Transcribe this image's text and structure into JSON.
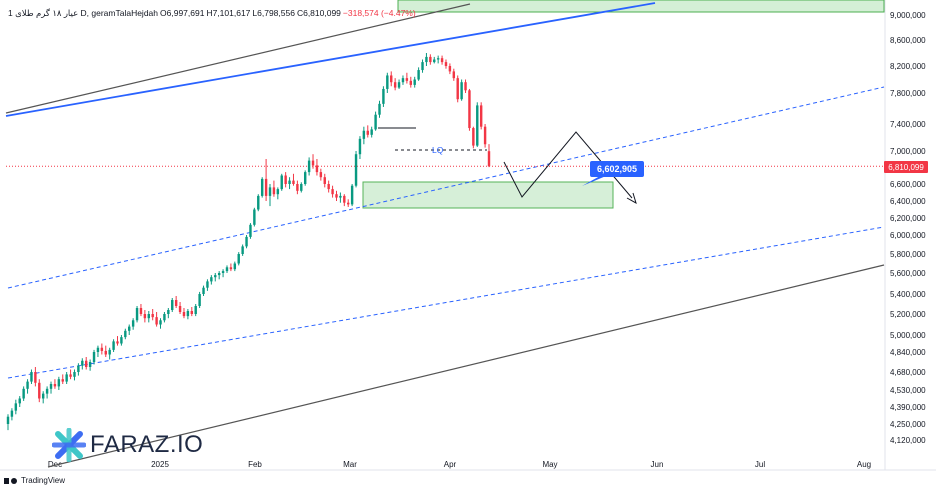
{
  "header": {
    "symbol": "1 عیار ۱۸ گرم طلای D, geramTalaHejdah",
    "open": "O6,997,691",
    "high": "H7,101,617",
    "low": "L6,798,556",
    "close": "C6,810,099",
    "change": "−318,574 (−4.47%)"
  },
  "footer": {
    "brand": "TradingView"
  },
  "watermark": {
    "text": "FARAZ.IO"
  },
  "annotations": {
    "callout_price": "6,602,905",
    "last_price": "6,810,099",
    "lq_label": "LQ"
  },
  "colors": {
    "up": "#089981",
    "down": "#f23645",
    "channel_blue": "#2962ff",
    "channel_gray": "#555555",
    "zone_fill": "#d4efd6",
    "zone_stroke": "#4caf50",
    "callout_bg": "#2962ff",
    "brand_teal": "#3ec6c8",
    "brand_blue": "#3d6df2"
  },
  "chart_data": {
    "type": "candlestick",
    "y_axis_ticks": [
      4120000,
      4250000,
      4390000,
      4530000,
      4680000,
      4840000,
      5000000,
      5200000,
      5400000,
      5600000,
      5800000,
      6000000,
      6200000,
      6400000,
      6600000,
      6800000,
      7000000,
      7400000,
      7800000,
      8200000,
      8600000,
      9000000
    ],
    "y_axis_labels": [
      "4,120,000",
      "4,250,000",
      "4,390,000",
      "4,530,000",
      "4,680,000",
      "4,840,000",
      "5,000,000",
      "5,200,000",
      "5,400,000",
      "5,600,000",
      "5,800,000",
      "6,000,000",
      "6,200,000",
      "6,400,000",
      "6,600,000",
      "6,800,000",
      "7,000,000",
      "7,400,000",
      "7,800,000",
      "8,200,000",
      "8,600,000",
      "9,000,000"
    ],
    "x_axis_labels": [
      "Dec",
      "2025",
      "Feb",
      "Mar",
      "Apr",
      "May",
      "Jun",
      "Jul",
      "Aug"
    ],
    "last_price": 6810099,
    "candles": [
      [
        4250000,
        4330000,
        4200000,
        4310000
      ],
      [
        4310000,
        4380000,
        4280000,
        4360000
      ],
      [
        4360000,
        4450000,
        4330000,
        4420000
      ],
      [
        4420000,
        4480000,
        4390000,
        4460000
      ],
      [
        4460000,
        4560000,
        4440000,
        4540000
      ],
      [
        4540000,
        4620000,
        4500000,
        4600000
      ],
      [
        4600000,
        4700000,
        4580000,
        4680000
      ],
      [
        4680000,
        4720000,
        4560000,
        4590000
      ],
      [
        4590000,
        4620000,
        4430000,
        4460000
      ],
      [
        4460000,
        4520000,
        4420000,
        4500000
      ],
      [
        4500000,
        4560000,
        4460000,
        4540000
      ],
      [
        4540000,
        4600000,
        4500000,
        4580000
      ],
      [
        4580000,
        4620000,
        4540000,
        4560000
      ],
      [
        4560000,
        4640000,
        4530000,
        4620000
      ],
      [
        4620000,
        4660000,
        4580000,
        4600000
      ],
      [
        4600000,
        4680000,
        4580000,
        4660000
      ],
      [
        4660000,
        4700000,
        4620000,
        4640000
      ],
      [
        4640000,
        4700000,
        4610000,
        4680000
      ],
      [
        4680000,
        4750000,
        4650000,
        4730000
      ],
      [
        4730000,
        4790000,
        4700000,
        4770000
      ],
      [
        4770000,
        4800000,
        4700000,
        4720000
      ],
      [
        4720000,
        4780000,
        4690000,
        4760000
      ],
      [
        4760000,
        4860000,
        4740000,
        4840000
      ],
      [
        4840000,
        4900000,
        4800000,
        4880000
      ],
      [
        4880000,
        4920000,
        4820000,
        4850000
      ],
      [
        4850000,
        4900000,
        4800000,
        4820000
      ],
      [
        4820000,
        4880000,
        4780000,
        4860000
      ],
      [
        4860000,
        4960000,
        4840000,
        4940000
      ],
      [
        4940000,
        4990000,
        4900000,
        4920000
      ],
      [
        4920000,
        5000000,
        4900000,
        4980000
      ],
      [
        4980000,
        5060000,
        4960000,
        5040000
      ],
      [
        5040000,
        5100000,
        5000000,
        5080000
      ],
      [
        5080000,
        5160000,
        5050000,
        5140000
      ],
      [
        5140000,
        5280000,
        5120000,
        5260000
      ],
      [
        5260000,
        5300000,
        5180000,
        5200000
      ],
      [
        5200000,
        5240000,
        5120000,
        5160000
      ],
      [
        5160000,
        5230000,
        5120000,
        5200000
      ],
      [
        5200000,
        5250000,
        5140000,
        5170000
      ],
      [
        5170000,
        5220000,
        5080000,
        5100000
      ],
      [
        5100000,
        5160000,
        5060000,
        5140000
      ],
      [
        5140000,
        5220000,
        5120000,
        5200000
      ],
      [
        5200000,
        5260000,
        5160000,
        5240000
      ],
      [
        5240000,
        5360000,
        5220000,
        5340000
      ],
      [
        5340000,
        5380000,
        5260000,
        5280000
      ],
      [
        5280000,
        5320000,
        5200000,
        5220000
      ],
      [
        5220000,
        5260000,
        5160000,
        5180000
      ],
      [
        5180000,
        5250000,
        5150000,
        5230000
      ],
      [
        5230000,
        5270000,
        5180000,
        5200000
      ],
      [
        5200000,
        5300000,
        5180000,
        5280000
      ],
      [
        5280000,
        5420000,
        5260000,
        5400000
      ],
      [
        5400000,
        5480000,
        5380000,
        5460000
      ],
      [
        5460000,
        5540000,
        5430000,
        5520000
      ],
      [
        5520000,
        5580000,
        5490000,
        5560000
      ],
      [
        5560000,
        5600000,
        5520000,
        5580000
      ],
      [
        5580000,
        5620000,
        5540000,
        5600000
      ],
      [
        5600000,
        5640000,
        5560000,
        5620000
      ],
      [
        5620000,
        5680000,
        5600000,
        5660000
      ],
      [
        5660000,
        5700000,
        5620000,
        5640000
      ],
      [
        5640000,
        5720000,
        5620000,
        5700000
      ],
      [
        5700000,
        5820000,
        5680000,
        5800000
      ],
      [
        5800000,
        5900000,
        5780000,
        5880000
      ],
      [
        5880000,
        6000000,
        5860000,
        5980000
      ],
      [
        5980000,
        6140000,
        5960000,
        6120000
      ],
      [
        6120000,
        6320000,
        6100000,
        6300000
      ],
      [
        6300000,
        6480000,
        6280000,
        6460000
      ],
      [
        6460000,
        6680000,
        6440000,
        6660000
      ],
      [
        6660000,
        6900000,
        6400000,
        6460000
      ],
      [
        6460000,
        6600000,
        6340000,
        6560000
      ],
      [
        6560000,
        6640000,
        6450000,
        6480000
      ],
      [
        6480000,
        6560000,
        6420000,
        6540000
      ],
      [
        6540000,
        6720000,
        6520000,
        6700000
      ],
      [
        6700000,
        6740000,
        6560000,
        6600000
      ],
      [
        6600000,
        6680000,
        6540000,
        6640000
      ],
      [
        6640000,
        6720000,
        6580000,
        6600000
      ],
      [
        6600000,
        6640000,
        6480000,
        6520000
      ],
      [
        6520000,
        6620000,
        6500000,
        6600000
      ],
      [
        6600000,
        6760000,
        6580000,
        6740000
      ],
      [
        6740000,
        6920000,
        6700000,
        6880000
      ],
      [
        6880000,
        6960000,
        6780000,
        6820000
      ],
      [
        6820000,
        6900000,
        6700000,
        6740000
      ],
      [
        6740000,
        6780000,
        6640000,
        6680000
      ],
      [
        6680000,
        6720000,
        6560000,
        6600000
      ],
      [
        6600000,
        6640000,
        6500000,
        6540000
      ],
      [
        6540000,
        6580000,
        6440000,
        6480000
      ],
      [
        6480000,
        6520000,
        6400000,
        6440000
      ],
      [
        6440000,
        6500000,
        6380000,
        6460000
      ],
      [
        6460000,
        6480000,
        6340000,
        6380000
      ],
      [
        6380000,
        6420000,
        6330000,
        6360000
      ],
      [
        6360000,
        6600000,
        6340000,
        6580000
      ],
      [
        6580000,
        7000000,
        6560000,
        6960000
      ],
      [
        6960000,
        7220000,
        6900000,
        7180000
      ],
      [
        7180000,
        7360000,
        7100000,
        7300000
      ],
      [
        7300000,
        7380000,
        7200000,
        7240000
      ],
      [
        7240000,
        7360000,
        7200000,
        7320000
      ],
      [
        7320000,
        7560000,
        7300000,
        7520000
      ],
      [
        7520000,
        7700000,
        7480000,
        7660000
      ],
      [
        7660000,
        7900000,
        7620000,
        7860000
      ],
      [
        7860000,
        8100000,
        7800000,
        8060000
      ],
      [
        8060000,
        8120000,
        7900000,
        7960000
      ],
      [
        7960000,
        8020000,
        7840000,
        7880000
      ],
      [
        7880000,
        8000000,
        7860000,
        7960000
      ],
      [
        7960000,
        8060000,
        7920000,
        8020000
      ],
      [
        8020000,
        8100000,
        7940000,
        7980000
      ],
      [
        7980000,
        8040000,
        7880000,
        7920000
      ],
      [
        7920000,
        8040000,
        7880000,
        8000000
      ],
      [
        8000000,
        8180000,
        7980000,
        8140000
      ],
      [
        8140000,
        8300000,
        8100000,
        8260000
      ],
      [
        8260000,
        8400000,
        8200000,
        8340000
      ],
      [
        8340000,
        8380000,
        8220000,
        8260000
      ],
      [
        8260000,
        8340000,
        8240000,
        8300000
      ],
      [
        8300000,
        8360000,
        8240000,
        8320000
      ],
      [
        8320000,
        8360000,
        8220000,
        8260000
      ],
      [
        8260000,
        8300000,
        8160000,
        8200000
      ],
      [
        8200000,
        8240000,
        8080000,
        8120000
      ],
      [
        8120000,
        8160000,
        7980000,
        8020000
      ],
      [
        8020000,
        8060000,
        7680000,
        7720000
      ],
      [
        7720000,
        8000000,
        7700000,
        7960000
      ],
      [
        7960000,
        8000000,
        7800000,
        7840000
      ],
      [
        7840000,
        7860000,
        7300000,
        7340000
      ],
      [
        7340000,
        7360000,
        7040000,
        7080000
      ],
      [
        7080000,
        7680000,
        7060000,
        7640000
      ],
      [
        7640000,
        7680000,
        7320000,
        7360000
      ],
      [
        7360000,
        7400000,
        7050000,
        7100000
      ],
      [
        6997691,
        7101617,
        6798556,
        6810099
      ]
    ]
  }
}
